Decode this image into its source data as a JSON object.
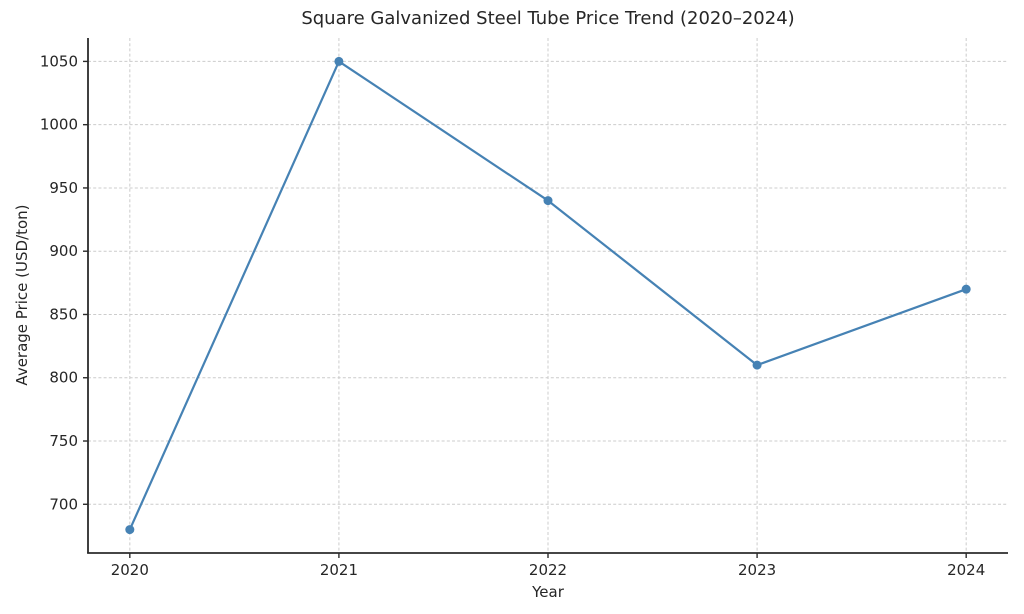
{
  "figure": {
    "title": "Square Galvanized Steel Tube Price Trend (2020–2024)"
  },
  "chart_data": {
    "type": "line",
    "title": "Square Galvanized Steel Tube Price Trend (2020–2024)",
    "xlabel": "Year",
    "ylabel": "Average Price (USD/ton)",
    "x": [
      2020,
      2021,
      2022,
      2023,
      2024
    ],
    "series": [
      {
        "name": "Average Price (USD/ton)",
        "values": [
          680,
          1050,
          940,
          810,
          870
        ],
        "marker": "circle"
      }
    ],
    "xticks": [
      2020,
      2021,
      2022,
      2023,
      2024
    ],
    "yticks": [
      700,
      750,
      800,
      850,
      900,
      950,
      1000,
      1050
    ],
    "xlim": [
      2019.8,
      2024.2
    ],
    "ylim": [
      661.5,
      1068.5
    ],
    "grid": true,
    "grid_style": "dashed",
    "legend_position": "none",
    "colors": {
      "line": "#4682b4",
      "marker": "#4682b4",
      "grid": "#cccccc",
      "spine": "#2b2b2b",
      "text": "#262626",
      "background": "#ffffff"
    }
  }
}
